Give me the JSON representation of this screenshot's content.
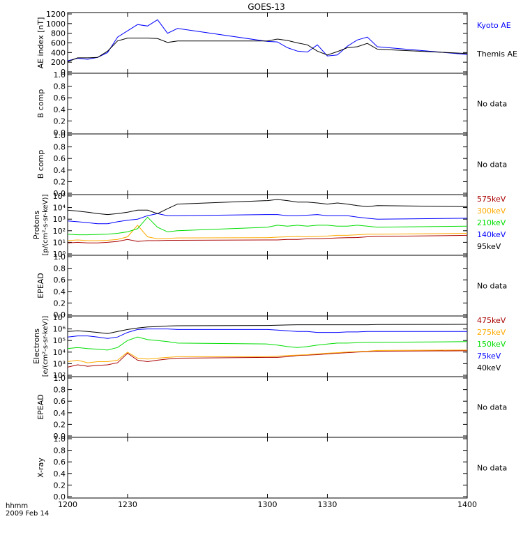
{
  "title": "GOES-13",
  "xaxis": {
    "ticks": [
      "1200",
      "1230",
      "1300",
      "1330",
      "1400"
    ],
    "tick_values": [
      1200,
      1230,
      1300,
      1330,
      1400
    ],
    "range": [
      1200,
      1400
    ],
    "unit_label": "hhmm",
    "date_label": "2009 Feb 14"
  },
  "colors": {
    "black": "#000000",
    "blue": "#0000ff",
    "green": "#00dd00",
    "orange": "#ffaa00",
    "red": "#aa0000"
  },
  "chart_data": [
    {
      "type": "line",
      "ylabel": "AE index [nT]",
      "ylim": [
        0,
        1200
      ],
      "yticks": [
        "0",
        "200",
        "400",
        "600",
        "800",
        "1000",
        "1200"
      ],
      "x": [
        1200,
        1205,
        1210,
        1215,
        1220,
        1225,
        1230,
        1235,
        1240,
        1245,
        1250,
        1255,
        1300,
        1305,
        1310,
        1315,
        1320,
        1325,
        1330,
        1335,
        1340,
        1345,
        1350,
        1355,
        1400
      ],
      "series": [
        {
          "name": "Kyoto AE",
          "color": "#0000ff",
          "values": [
            230,
            280,
            260,
            300,
            400,
            720,
            850,
            980,
            950,
            1080,
            800,
            900,
            630,
            620,
            500,
            430,
            410,
            560,
            330,
            350,
            530,
            660,
            720,
            520,
            360
          ]
        },
        {
          "name": "Themis AE",
          "color": "#000000",
          "values": [
            210,
            290,
            290,
            300,
            430,
            640,
            700,
            700,
            700,
            690,
            610,
            640,
            640,
            680,
            650,
            600,
            560,
            430,
            350,
            420,
            500,
            520,
            590,
            470,
            380
          ]
        }
      ]
    },
    {
      "type": "line",
      "ylabel": "B comp",
      "ylim": [
        0,
        1
      ],
      "yticks": [
        "0.0",
        "0.2",
        "0.4",
        "0.6",
        "0.8",
        "1.0"
      ],
      "note": "No data",
      "series": []
    },
    {
      "type": "line",
      "ylabel": "B comp",
      "ylim": [
        0,
        1
      ],
      "yticks": [
        "0.0",
        "0.2",
        "0.4",
        "0.6",
        "0.8",
        "1.0"
      ],
      "note": "No data",
      "series": []
    },
    {
      "type": "line",
      "log": true,
      "ylabel": "Protons",
      "ylabel2": "[p/(cm²-s-sr-keV)]",
      "ylim": [
        1,
        100000
      ],
      "yticks": [
        "10⁰",
        "10¹",
        "10²",
        "10³",
        "10⁴",
        "10⁵"
      ],
      "x": [
        1200,
        1205,
        1210,
        1215,
        1220,
        1225,
        1230,
        1235,
        1240,
        1245,
        1250,
        1255,
        1300,
        1305,
        1310,
        1315,
        1320,
        1325,
        1330,
        1335,
        1340,
        1345,
        1350,
        1355,
        1400
      ],
      "series": [
        {
          "name": "575keV",
          "color": "#aa0000",
          "values": [
            9,
            10,
            9,
            9,
            10,
            12,
            18,
            12,
            14,
            14,
            15,
            15,
            16,
            16,
            18,
            18,
            20,
            20,
            22,
            24,
            25,
            26,
            30,
            32,
            40
          ]
        },
        {
          "name": "300keV",
          "color": "#ffaa00",
          "values": [
            14,
            16,
            14,
            14,
            15,
            18,
            30,
            300,
            30,
            20,
            22,
            24,
            25,
            28,
            30,
            32,
            30,
            32,
            35,
            40,
            40,
            45,
            50,
            50,
            60
          ]
        },
        {
          "name": "210keV",
          "color": "#00dd00",
          "values": [
            50,
            45,
            45,
            48,
            50,
            60,
            80,
            150,
            1500,
            200,
            80,
            100,
            200,
            300,
            250,
            300,
            250,
            300,
            300,
            250,
            250,
            300,
            250,
            200,
            250
          ]
        },
        {
          "name": "140keV",
          "color": "#0000ff",
          "values": [
            700,
            600,
            500,
            400,
            400,
            600,
            800,
            1000,
            2000,
            3000,
            2000,
            2000,
            2500,
            2500,
            2000,
            2000,
            2200,
            2500,
            2000,
            2000,
            2000,
            1500,
            1200,
            1000,
            1200
          ]
        },
        {
          "name": "95keV",
          "color": "#000000",
          "values": [
            6000,
            5000,
            4000,
            3000,
            2500,
            3000,
            4000,
            6000,
            6000,
            3000,
            8000,
            20000,
            40000,
            50000,
            40000,
            30000,
            30000,
            25000,
            20000,
            25000,
            20000,
            15000,
            12000,
            15000,
            12000
          ]
        }
      ]
    },
    {
      "type": "line",
      "ylabel": "EPEAD",
      "ylim": [
        0,
        1
      ],
      "yticks": [
        "0.0",
        "0.2",
        "0.4",
        "0.6",
        "0.8",
        "1.0"
      ],
      "note": "No data",
      "series": []
    },
    {
      "type": "line",
      "log": true,
      "ylabel": "Electrons",
      "ylabel2": "[e/(cm²-s-sr-keV)]",
      "ylim": [
        100,
        10000000
      ],
      "yticks": [
        "10²",
        "10³",
        "10⁴",
        "10⁵",
        "10⁶",
        "10⁷"
      ],
      "x": [
        1200,
        1205,
        1210,
        1215,
        1220,
        1225,
        1230,
        1235,
        1240,
        1245,
        1250,
        1255,
        1300,
        1305,
        1310,
        1315,
        1320,
        1325,
        1330,
        1335,
        1340,
        1345,
        1350,
        1355,
        1400
      ],
      "series": [
        {
          "name": "475keV",
          "color": "#aa0000",
          "values": [
            500,
            800,
            600,
            700,
            800,
            1200,
            8000,
            2000,
            1500,
            2000,
            2500,
            3000,
            3500,
            3500,
            4000,
            5000,
            5500,
            6000,
            7000,
            8000,
            9000,
            10000,
            11000,
            12000,
            13000
          ]
        },
        {
          "name": "275keV",
          "color": "#ffaa00",
          "values": [
            1500,
            2000,
            1200,
            1500,
            1500,
            2000,
            10000,
            3000,
            2500,
            3000,
            3500,
            4000,
            4000,
            4500,
            5000,
            5500,
            6000,
            7000,
            8000,
            9000,
            10000,
            11000,
            12000,
            14000,
            15000
          ]
        },
        {
          "name": "150keV",
          "color": "#00dd00",
          "values": [
            20000,
            25000,
            20000,
            18000,
            15000,
            25000,
            100000,
            200000,
            120000,
            100000,
            80000,
            60000,
            50000,
            40000,
            30000,
            25000,
            30000,
            40000,
            50000,
            60000,
            60000,
            65000,
            70000,
            70000,
            80000
          ]
        },
        {
          "name": "75keV",
          "color": "#0000ff",
          "values": [
            200000,
            250000,
            250000,
            200000,
            150000,
            200000,
            500000,
            900000,
            1000000,
            1000000,
            1000000,
            900000,
            900000,
            800000,
            700000,
            600000,
            600000,
            500000,
            500000,
            500000,
            550000,
            550000,
            600000,
            600000,
            600000
          ]
        },
        {
          "name": "40keV",
          "color": "#000000",
          "values": [
            600000,
            700000,
            600000,
            500000,
            400000,
            600000,
            900000,
            1200000,
            1500000,
            1600000,
            1800000,
            1900000,
            2000000,
            2100000,
            2200000,
            2300000,
            2300000,
            2300000,
            2300000,
            2300000,
            2300000,
            2300000,
            2300000,
            2400000,
            2500000
          ]
        }
      ]
    },
    {
      "type": "line",
      "ylabel": "EPEAD",
      "ylim": [
        0,
        1
      ],
      "yticks": [
        "0.0",
        "0.2",
        "0.4",
        "0.6",
        "0.8",
        "1.0"
      ],
      "note": "No data",
      "series": []
    },
    {
      "type": "line",
      "ylabel": "X-ray",
      "ylim": [
        0,
        1
      ],
      "yticks": [
        "0.0",
        "0.2",
        "0.4",
        "0.6",
        "0.8",
        "1.0"
      ],
      "note": "No data",
      "series": []
    }
  ]
}
